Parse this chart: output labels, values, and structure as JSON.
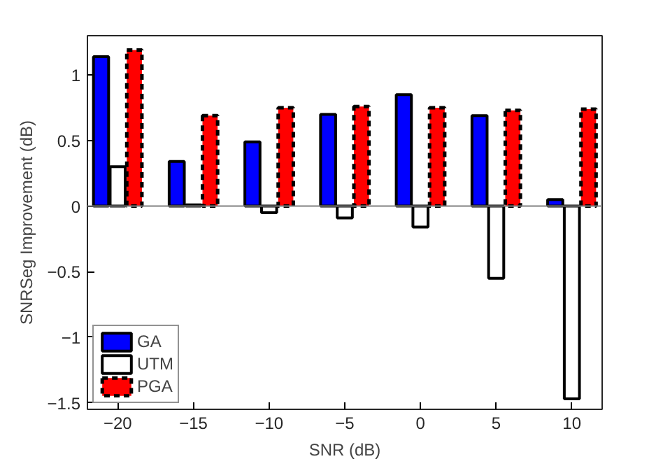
{
  "chart_data": {
    "type": "bar",
    "xlabel": "SNR (dB)",
    "ylabel": "SNRSeg Improvement (dB)",
    "x": [
      -20,
      -15,
      -10,
      -5,
      0,
      5,
      10
    ],
    "series": [
      {
        "name": "GA",
        "color": "#0000ff",
        "values": [
          1.14,
          0.34,
          0.49,
          0.7,
          0.85,
          0.69,
          0.05
        ]
      },
      {
        "name": "UTM",
        "color": "#ffffff",
        "values": [
          0.3,
          0.01,
          -0.05,
          -0.09,
          -0.16,
          -0.55,
          -1.47
        ]
      },
      {
        "name": "PGA",
        "color": "#ff0000",
        "values": [
          1.19,
          0.69,
          0.75,
          0.76,
          0.75,
          0.73,
          0.74
        ],
        "line_style": "dashed"
      }
    ],
    "xlim": [
      -22,
      12
    ],
    "xticks": [
      -20,
      -15,
      -10,
      -5,
      0,
      5,
      10
    ],
    "ylim": [
      -1.55,
      1.3
    ],
    "yticks": [
      -1.5,
      -1,
      -0.5,
      0,
      0.5,
      1
    ],
    "ref_lines": [
      {
        "axis": "y",
        "value": 0,
        "color": "#808080"
      }
    ],
    "grid": false,
    "legend": "bottom left"
  }
}
